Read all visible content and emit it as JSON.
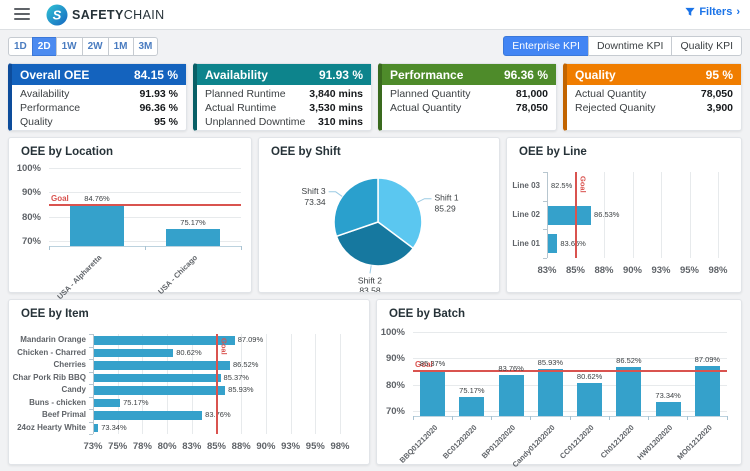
{
  "header": {
    "brand_bold": "SAFETY",
    "brand_rest": "CHAIN",
    "filters_label": "Filters",
    "filters_chevron": "›"
  },
  "colors": {
    "bar": "#35A1CB",
    "goal": "#D9534F",
    "accent": "#4285F4"
  },
  "time_tabs": {
    "items": [
      "1D",
      "2D",
      "1W",
      "2W",
      "1M",
      "3M"
    ],
    "selected": "2D"
  },
  "kpi_tabs": {
    "items": [
      "Enterprise KPI",
      "Downtime KPI",
      "Quality KPI"
    ],
    "selected": "Enterprise KPI"
  },
  "kpi_cards": [
    {
      "title": "Overall OEE",
      "value": "84.15 %",
      "color": "#1463BE",
      "border_color": "#0D4C9B",
      "rows": [
        {
          "label": "Availability",
          "value": "91.93 %"
        },
        {
          "label": "Performance",
          "value": "96.36 %"
        },
        {
          "label": "Quality",
          "value": "95 %"
        }
      ]
    },
    {
      "title": "Availability",
      "value": "91.93 %",
      "color": "#0D848C",
      "border_color": "#085F66",
      "rows": [
        {
          "label": "Planned Runtime",
          "value": "3,840 mins"
        },
        {
          "label": "Actual Runtime",
          "value": "3,530 mins"
        },
        {
          "label": "Unplanned Downtime",
          "value": "310 mins"
        }
      ]
    },
    {
      "title": "Performance",
      "value": "96.36 %",
      "color": "#4E8B2A",
      "border_color": "#3A6A1E",
      "rows": [
        {
          "label": "Planned Quantity",
          "value": "81,000"
        },
        {
          "label": "Actual Quantity",
          "value": "78,050"
        }
      ]
    },
    {
      "title": "Quality",
      "value": "95 %",
      "color": "#F07D00",
      "border_color": "#C26400",
      "rows": [
        {
          "label": "Actual Quantity",
          "value": "78,050"
        },
        {
          "label": "Rejected Quanity",
          "value": "3,900"
        }
      ]
    }
  ],
  "chart_data": [
    {
      "id": "location",
      "type": "bar",
      "title": "OEE by Location",
      "categories": [
        "USA - Alpharetta",
        "USA - Chicago"
      ],
      "values": [
        84.76,
        75.17
      ],
      "value_labels": [
        "84.76%",
        "75.17%"
      ],
      "ylim": [
        68,
        100
      ],
      "yticks": [
        100,
        90,
        80,
        70
      ],
      "goal": 85,
      "goal_label": "Goal"
    },
    {
      "id": "shift",
      "type": "pie",
      "title": "OEE by Shift",
      "slices": [
        {
          "label": "Shift 1",
          "value": 85.29,
          "value_label": "85.29",
          "color": "#5BC7F0"
        },
        {
          "label": "Shift 2",
          "value": 83.58,
          "value_label": "83.58",
          "color": "#16789F"
        },
        {
          "label": "Shift 3",
          "value": 73.34,
          "value_label": "73.34",
          "color": "#2AA0CD"
        }
      ]
    },
    {
      "id": "line",
      "type": "hbar",
      "title": "OEE by Line",
      "categories": [
        "Line 03",
        "Line 02",
        "Line 01"
      ],
      "values": [
        82.5,
        86.53,
        83.66
      ],
      "value_labels": [
        "82.5%",
        "86.53%",
        "83.66%"
      ],
      "xticks": [
        83,
        85,
        88,
        90,
        93,
        95,
        98
      ],
      "xtick_labels": [
        "83%",
        "85%",
        "88%",
        "90%",
        "93%",
        "95%",
        "98%"
      ],
      "goal": 85,
      "goal_label": "Goal"
    },
    {
      "id": "item",
      "type": "hbar",
      "title": "OEE by Item",
      "categories": [
        "Mandarin Orange",
        "Chicken - Charred",
        "Cherries",
        "Char Pork Rib BBQ",
        "Candy",
        "Buns - chicken",
        "Beef Primal",
        "24oz Hearty White"
      ],
      "values": [
        87.09,
        80.62,
        86.52,
        85.37,
        85.93,
        75.17,
        83.76,
        73.34
      ],
      "value_labels": [
        "87.09%",
        "80.62%",
        "86.52%",
        "85.37%",
        "85.93%",
        "75.17%",
        "83.76%",
        "73.34%"
      ],
      "xticks": [
        73,
        75,
        78,
        80,
        83,
        85,
        88,
        90,
        93,
        95,
        98
      ],
      "xtick_labels": [
        "73%",
        "75%",
        "78%",
        "80%",
        "83%",
        "85%",
        "88%",
        "90%",
        "93%",
        "95%",
        "98%"
      ],
      "goal": 85,
      "goal_label": "Goal"
    },
    {
      "id": "batch",
      "type": "bar",
      "title": "OEE by Batch",
      "categories": [
        "BBQ01212020",
        "BC01202020",
        "BP01202020",
        "Candy01202020",
        "CC01212020",
        "Ch01212020",
        "HW01202020",
        "MO01212020"
      ],
      "values": [
        85.37,
        75.17,
        83.76,
        85.93,
        80.62,
        86.52,
        73.34,
        87.09
      ],
      "value_labels": [
        "85.37%",
        "75.17%",
        "83.76%",
        "85.93%",
        "80.62%",
        "86.52%",
        "73.34%",
        "87.09%"
      ],
      "ylim": [
        68,
        100
      ],
      "yticks": [
        100,
        90,
        80,
        70
      ],
      "goal": 85,
      "goal_label": "Goal"
    }
  ]
}
